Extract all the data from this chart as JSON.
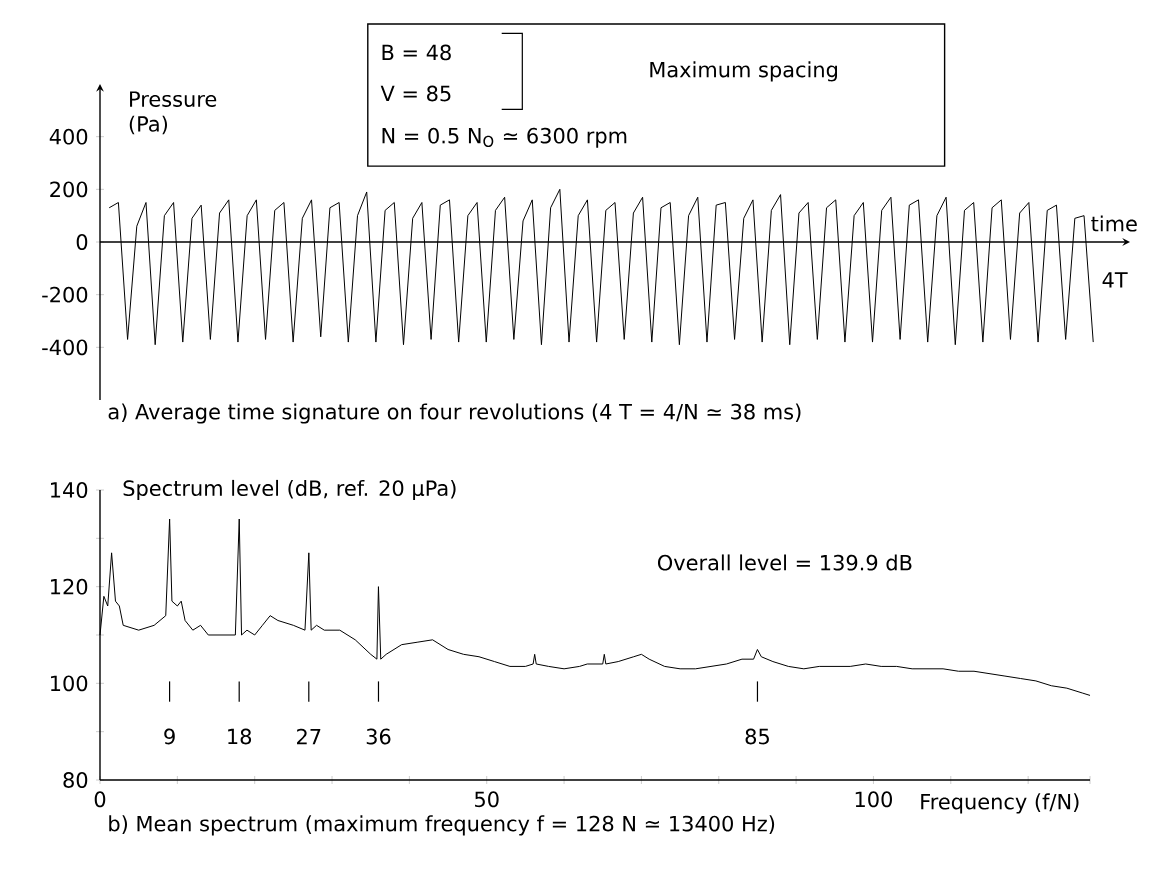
{
  "chart_data": [
    {
      "type": "line",
      "xlabel": "time",
      "ylabel": "Pressure (Pa)",
      "title": "a) Average time signature on four revolutions (4 T = 4/N ≃ 38 ms)",
      "annotations": [
        "B = 48",
        "V = 85",
        "Maximum spacing",
        "N = 0.5 N$_{O}$ ≃ 6300 rpm",
        "4T"
      ],
      "categories": [
        null,
        null,
        null,
        null,
        null,
        null,
        null,
        null,
        null,
        null,
        null,
        null,
        null,
        null,
        null,
        null,
        null,
        null,
        null,
        null,
        null,
        null,
        null,
        null,
        null,
        null,
        null,
        null,
        null,
        null,
        null,
        null,
        null,
        null,
        null,
        null,
        null,
        null,
        null,
        null,
        null,
        null,
        null,
        null,
        null,
        null,
        null,
        null,
        null,
        null,
        null,
        null,
        null,
        null,
        null,
        null,
        null,
        null,
        null,
        null,
        null,
        null,
        null,
        null,
        null,
        null,
        null,
        null,
        null,
        null,
        null,
        null,
        null,
        null,
        null,
        null,
        null,
        null,
        null,
        null,
        null,
        null,
        null,
        null,
        null,
        null,
        null,
        null,
        null,
        null,
        null,
        null,
        null,
        null,
        null,
        null,
        null,
        null,
        null,
        null,
        null,
        null,
        null,
        null,
        null,
        null,
        null,
        null
      ],
      "values": [
        130,
        150,
        -370,
        60,
        150,
        -390,
        100,
        150,
        -380,
        90,
        140,
        -370,
        110,
        160,
        -380,
        100,
        160,
        -370,
        120,
        150,
        -380,
        90,
        160,
        -360,
        130,
        150,
        -380,
        100,
        190,
        -380,
        120,
        150,
        -390,
        90,
        150,
        -370,
        140,
        160,
        -380,
        100,
        150,
        -380,
        120,
        170,
        -370,
        80,
        160,
        -390,
        130,
        200,
        -380,
        100,
        160,
        -380,
        120,
        150,
        -370,
        110,
        170,
        -380,
        130,
        150,
        -390,
        100,
        170,
        -380,
        140,
        150,
        -370,
        90,
        160,
        -380,
        120,
        180,
        -390,
        110,
        150,
        -370,
        130,
        160,
        -380,
        100,
        150,
        -380,
        120,
        170,
        -370,
        140,
        160,
        -380,
        100,
        170,
        -390,
        120,
        150,
        -380,
        130,
        160,
        -370,
        110,
        150,
        -380,
        120,
        140,
        -370,
        90,
        100,
        -380
      ],
      "color": "#000000",
      "ylim": [
        -600,
        600
      ],
      "yticks": [
        -400,
        -200,
        0,
        200,
        400
      ],
      "tick_labels": "y",
      "ref_lines": [
        {
          "axis": "y",
          "value": 0
        }
      ],
      "marker": "none",
      "line_style": "solid"
    },
    {
      "type": "line",
      "xlabel": "Frequency (f/N)",
      "ylabel": "Spectrum level (dB, ref. 20 µPa)",
      "title": "b) Mean spectrum (maximum frequency f = 128 N ≃ 13400 Hz)",
      "annotations": [
        "Overall level  =  139.9 dB",
        "9",
        "18",
        "27",
        "36",
        "85"
      ],
      "x": [
        0,
        0.5,
        1,
        1.5,
        2,
        2.5,
        3,
        5,
        7,
        8.5,
        9,
        9.3,
        10,
        10.5,
        11,
        12,
        13,
        14,
        16,
        17.5,
        18,
        18.3,
        19,
        20,
        21,
        22,
        23,
        25,
        26.5,
        27,
        27.3,
        28,
        29,
        31,
        33,
        35,
        35.8,
        36,
        36.3,
        37,
        39,
        41,
        43,
        45,
        47,
        49,
        51,
        53,
        55,
        56,
        56.2,
        56.4,
        58,
        60,
        62,
        63,
        64,
        65,
        65.2,
        65.4,
        67,
        69,
        70,
        71,
        73,
        75,
        77,
        79,
        81,
        83,
        84.5,
        85,
        85.5,
        87,
        89,
        91,
        93,
        95,
        97,
        99,
        101,
        103,
        105,
        107,
        109,
        111,
        113,
        115,
        117,
        119,
        121,
        123,
        125,
        127,
        128
      ],
      "values": [
        110,
        118,
        116,
        127,
        117,
        116,
        112,
        111,
        112,
        114,
        134,
        117,
        116,
        117,
        113,
        111,
        112,
        110,
        110,
        110,
        134,
        110,
        111,
        110,
        112,
        114,
        113,
        112,
        111,
        127,
        111,
        112,
        111,
        111,
        109,
        106,
        105,
        120,
        105,
        106,
        108,
        108.5,
        109,
        107,
        106,
        105.5,
        104.5,
        103.5,
        103.5,
        104,
        106,
        104,
        103.5,
        103,
        103.5,
        104,
        104,
        104,
        106,
        104,
        104.5,
        105.5,
        106,
        105,
        103.5,
        103,
        103,
        103.5,
        104,
        105,
        105,
        107,
        105.5,
        104.5,
        103.5,
        103,
        103.5,
        103.5,
        103.5,
        104,
        103.5,
        103.5,
        103,
        103,
        103,
        102.5,
        102.5,
        102,
        101.5,
        101,
        100.5,
        99.5,
        99,
        98,
        97.5
      ],
      "color": "#000000",
      "xlim": [
        0,
        128
      ],
      "ylim": [
        80,
        140
      ],
      "xticks": [
        0,
        {
          "value": 10,
          "label": null
        },
        {
          "value": 20,
          "label": null
        },
        {
          "value": 30,
          "label": null
        },
        {
          "value": 40,
          "label": null
        },
        50,
        {
          "value": 60,
          "label": null
        },
        {
          "value": 70,
          "label": null
        },
        {
          "value": 80,
          "label": null
        },
        {
          "value": 90,
          "label": null
        },
        100,
        {
          "value": 110,
          "label": null
        },
        {
          "value": 120,
          "label": null
        },
        {
          "value": 128,
          "label": null
        }
      ],
      "yticks": [
        80,
        {
          "value": 90,
          "label": null
        },
        100,
        {
          "value": 110,
          "label": null
        },
        120,
        {
          "value": 130,
          "label": null
        },
        140
      ],
      "marker": "none",
      "line_style": "solid"
    }
  ]
}
